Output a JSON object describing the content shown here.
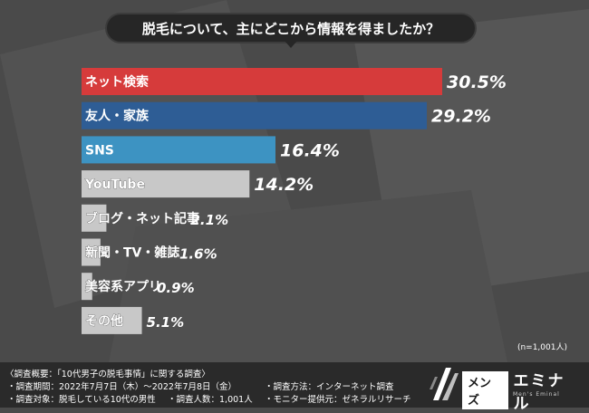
{
  "title": "脱毛について、主にどこから情報を得ましたか？",
  "sample_note": "(n=1,001人)",
  "footer": {
    "overview": "〈調査概要：「10代男子の脱毛事情」に関する調査〉",
    "period": "・調査期間：2022年7月7日（木）〜2022年7月8日（金）",
    "target": "・調査対象：脱毛している10代の男性",
    "count": "・調査人数：1,001人",
    "method": "・調査方法：インターネット調査",
    "provider": "・モニター提供元：ゼネラルリサーチ"
  },
  "logo": {
    "prefix": "メンズ",
    "main": "エミナル",
    "sub": "Men's Eminal",
    "icon": "stripe-logo-icon"
  },
  "colors": {
    "background": "#4a4a4a",
    "highlight_1": "#d63b3b",
    "highlight_2": "#2e5d95",
    "highlight_3": "#3d93c2",
    "default_bar": "#c8c8c8",
    "label_text": "#ffffff",
    "default_label_text": "#ffffff"
  },
  "chart_data": {
    "type": "bar",
    "orientation": "horizontal",
    "title": "脱毛について、主にどこから情報を得ましたか？",
    "unit": "%",
    "categories": [
      "ネット検索",
      "友人・家族",
      "SNS",
      "YouTube",
      "ブログ・ネット記事",
      "新聞・TV・雑誌",
      "美容系アプリ",
      "その他"
    ],
    "values": [
      30.5,
      29.2,
      16.4,
      14.2,
      2.1,
      1.6,
      0.9,
      5.1
    ],
    "value_labels": [
      "30.5%",
      "29.2%",
      "16.4%",
      "14.2%",
      "2.1%",
      "1.6%",
      "0.9%",
      "5.1%"
    ],
    "bar_colors": [
      "#d63b3b",
      "#2e5d95",
      "#3d93c2",
      "#c8c8c8",
      "#c8c8c8",
      "#c8c8c8",
      "#c8c8c8",
      "#c8c8c8"
    ],
    "label_colors": [
      "#ffffff",
      "#ffffff",
      "#ffffff",
      "#2b2b2b",
      "#2b2b2b",
      "#2b2b2b",
      "#2b2b2b",
      "#2b2b2b"
    ],
    "xlim": [
      0,
      30.5
    ],
    "grid": false,
    "legend": "none"
  }
}
